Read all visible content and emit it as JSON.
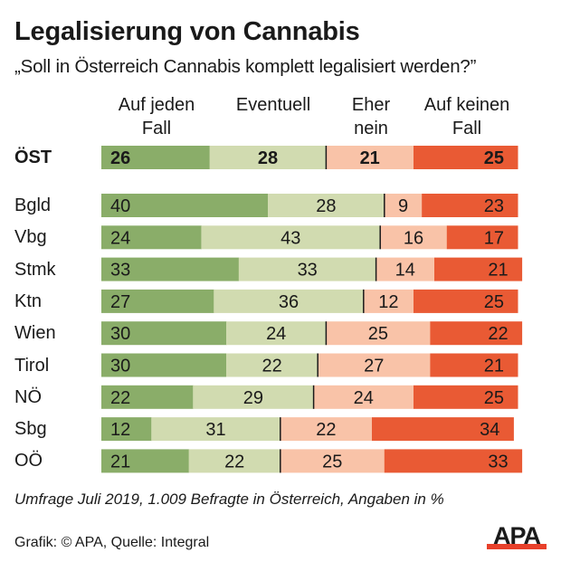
{
  "title": "Legalisierung von Cannabis",
  "subtitle": "„Soll in Österreich Cannabis komplett legalisiert werden?”",
  "footnote": "Umfrage Juli 2019, 1.009 Befragte in Österreich, Angaben in %",
  "credit": "Grafik: © APA, Quelle: Integral",
  "logo": {
    "text": "APA",
    "text_color": "#1a1a1a",
    "bar_color": "#e8402a"
  },
  "colors": {
    "Auf jeden Fall": "#8aad69",
    "Eventuell": "#d1dbb0",
    "Eher nein": "#f9c3a8",
    "Auf keinen Fall": "#e95a34"
  },
  "chart_data": {
    "type": "bar",
    "orientation": "horizontal",
    "stacked": true,
    "title": "Legalisierung von Cannabis",
    "subtitle": "„Soll in Österreich Cannabis komplett legalisiert werden?”",
    "xlabel": "",
    "ylabel": "",
    "unit": "%",
    "xlim": [
      0,
      100
    ],
    "grid": false,
    "legend_position": "top",
    "divider_after_series": "Eventuell",
    "series_headers": [
      "Auf jeden\nFall",
      "Eventuell",
      "Eher\nnein",
      "Auf keinen\nFall"
    ],
    "categories": [
      "ÖST",
      "Bgld",
      "Vbg",
      "Stmk",
      "Ktn",
      "Wien",
      "Tirol",
      "NÖ",
      "Sbg",
      "OÖ"
    ],
    "total_category": "ÖST",
    "series": [
      {
        "name": "Auf jeden Fall",
        "values": [
          26,
          40,
          24,
          33,
          27,
          30,
          30,
          22,
          12,
          21
        ]
      },
      {
        "name": "Eventuell",
        "values": [
          28,
          28,
          43,
          33,
          36,
          24,
          22,
          29,
          31,
          22
        ]
      },
      {
        "name": "Eher nein",
        "values": [
          21,
          9,
          16,
          14,
          12,
          25,
          27,
          24,
          22,
          25
        ]
      },
      {
        "name": "Auf keinen Fall",
        "values": [
          25,
          23,
          17,
          21,
          25,
          22,
          21,
          25,
          34,
          33
        ]
      }
    ]
  }
}
